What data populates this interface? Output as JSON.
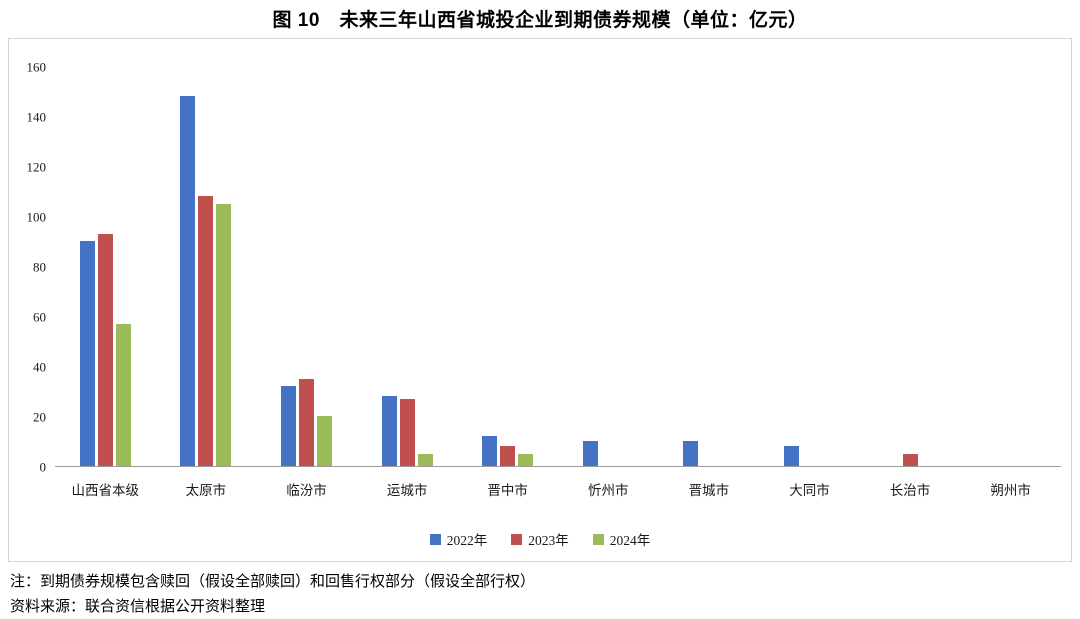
{
  "title": "图 10　未来三年山西省城投企业到期债券规模（单位：亿元）",
  "notes": {
    "note1": "注：到期债券规模包含赎回（假设全部赎回）和回售行权部分（假设全部行权）",
    "note2": "资料来源：联合资信根据公开资料整理"
  },
  "chart_data": {
    "type": "bar",
    "title": "图 10　未来三年山西省城投企业到期债券规模（单位：亿元）",
    "xlabel": "",
    "ylabel": "",
    "categories": [
      "山西省本级",
      "太原市",
      "临汾市",
      "运城市",
      "晋中市",
      "忻州市",
      "晋城市",
      "大同市",
      "长治市",
      "朔州市"
    ],
    "series": [
      {
        "name": "2022年",
        "color": "#4472C4",
        "values": [
          90,
          148,
          32,
          28,
          12,
          10,
          10,
          8,
          0,
          0
        ]
      },
      {
        "name": "2023年",
        "color": "#C0504D",
        "values": [
          93,
          108,
          35,
          27,
          8,
          0,
          0,
          0,
          5,
          0
        ]
      },
      {
        "name": "2024年",
        "color": "#9BBB59",
        "values": [
          57,
          105,
          20,
          5,
          5,
          0,
          0,
          0,
          0,
          0
        ]
      }
    ],
    "ylim": [
      0,
      160
    ],
    "ytick_interval": 20,
    "grid": false,
    "legend_position": "bottom"
  }
}
